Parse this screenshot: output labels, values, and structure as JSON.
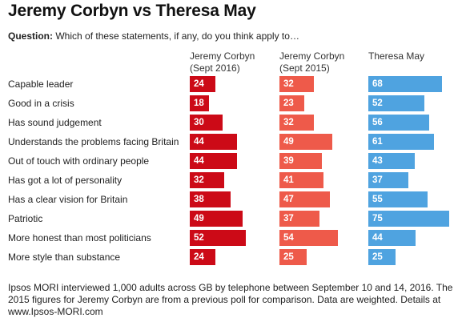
{
  "title": "Jeremy Corbyn vs Theresa May",
  "question": {
    "label": "Question:",
    "text": "Which of these statements, if any, do you think apply to…"
  },
  "footer": "Ipsos MORI interviewed 1,000 adults across GB by telephone between September 10 and 14, 2016. The 2015 figures for Jeremy Corbyn are from a previous poll for comparison. Data are weighted. Details at www.Ipsos-MORI.com",
  "chart_data": {
    "type": "bar",
    "orientation": "horizontal",
    "categories": [
      "Capable leader",
      "Good in a crisis",
      "Has sound judgement",
      "Understands the problems facing Britain",
      "Out of touch with ordinary people",
      "Has got a lot of personality",
      "Has a clear vision for Britain",
      "Patriotic",
      "More honest than most politicians",
      "More style than substance"
    ],
    "series": [
      {
        "name_lines": [
          "Jeremy Corbyn",
          "(Sept 2016)"
        ],
        "color": "#cc0a17",
        "values": [
          24,
          18,
          30,
          44,
          44,
          32,
          38,
          49,
          52,
          24
        ]
      },
      {
        "name_lines": [
          "Jeremy Corbyn",
          "(Sept 2015)"
        ],
        "color": "#ee5a4a",
        "values": [
          32,
          23,
          32,
          49,
          39,
          41,
          47,
          37,
          54,
          25
        ]
      },
      {
        "name_lines": [
          "Theresa May"
        ],
        "color": "#4fa3e0",
        "values": [
          68,
          52,
          56,
          61,
          43,
          37,
          55,
          75,
          44,
          25
        ]
      }
    ]
  }
}
